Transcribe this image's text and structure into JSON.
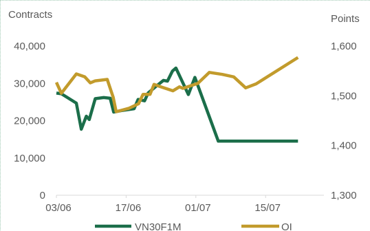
{
  "chart_data": {
    "type": "line",
    "left_axis_label": "Contracts",
    "right_axis_label": "Points",
    "left_ylim": [
      0,
      40000
    ],
    "left_ticks": [
      "0",
      "10,000",
      "20,000",
      "30,000",
      "40,000"
    ],
    "left_tick_values": [
      0,
      10000,
      20000,
      30000,
      40000
    ],
    "right_ylim": [
      1300,
      1600
    ],
    "right_ticks": [
      "1,300",
      "1,400",
      "1,500",
      "1,600"
    ],
    "right_tick_values": [
      1300,
      1400,
      1500,
      1600
    ],
    "x_ticks": [
      "03/06",
      "17/06",
      "01/07",
      "15/07"
    ],
    "x_tick_days": [
      0,
      14,
      28,
      42
    ],
    "grid": false,
    "legend_position": "bottom",
    "series": [
      {
        "name": "VN30F1M",
        "axis": "left",
        "color": "#1b6e4a",
        "points": [
          [
            0,
            27400
          ],
          [
            1,
            27200
          ],
          [
            4,
            24700
          ],
          [
            5,
            17700
          ],
          [
            6,
            21200
          ],
          [
            6.6,
            20300
          ],
          [
            7.8,
            25900
          ],
          [
            9.5,
            26200
          ],
          [
            10.8,
            26000
          ],
          [
            11.5,
            22300
          ],
          [
            13,
            22700
          ],
          [
            15.6,
            23200
          ],
          [
            16.4,
            25700
          ],
          [
            17.7,
            25300
          ],
          [
            18.4,
            27400
          ],
          [
            20.1,
            29300
          ],
          [
            21.5,
            30800
          ],
          [
            22.3,
            30600
          ],
          [
            23.3,
            33300
          ],
          [
            24,
            34100
          ],
          [
            26.5,
            27000
          ],
          [
            27.8,
            31600
          ],
          [
            32.5,
            14500
          ],
          [
            37,
            14500
          ],
          [
            48.5,
            14500
          ]
        ]
      },
      {
        "name": "OI",
        "axis": "right",
        "color": "#c29b2c",
        "points": [
          [
            0,
            1527
          ],
          [
            1,
            1505
          ],
          [
            4,
            1544
          ],
          [
            5.7,
            1538
          ],
          [
            6.8,
            1526
          ],
          [
            7.8,
            1530
          ],
          [
            10.2,
            1533
          ],
          [
            11.4,
            1497
          ],
          [
            12,
            1468
          ],
          [
            14.6,
            1475
          ],
          [
            16.5,
            1484
          ],
          [
            17.4,
            1503
          ],
          [
            18.8,
            1503
          ],
          [
            19.6,
            1523
          ],
          [
            20.7,
            1519
          ],
          [
            23.4,
            1510
          ],
          [
            24.7,
            1518
          ],
          [
            25.4,
            1515
          ],
          [
            28.4,
            1525
          ],
          [
            30.7,
            1547
          ],
          [
            33.3,
            1543
          ],
          [
            35.6,
            1538
          ],
          [
            38,
            1516
          ],
          [
            40.1,
            1524
          ],
          [
            48.5,
            1577
          ]
        ]
      }
    ]
  }
}
